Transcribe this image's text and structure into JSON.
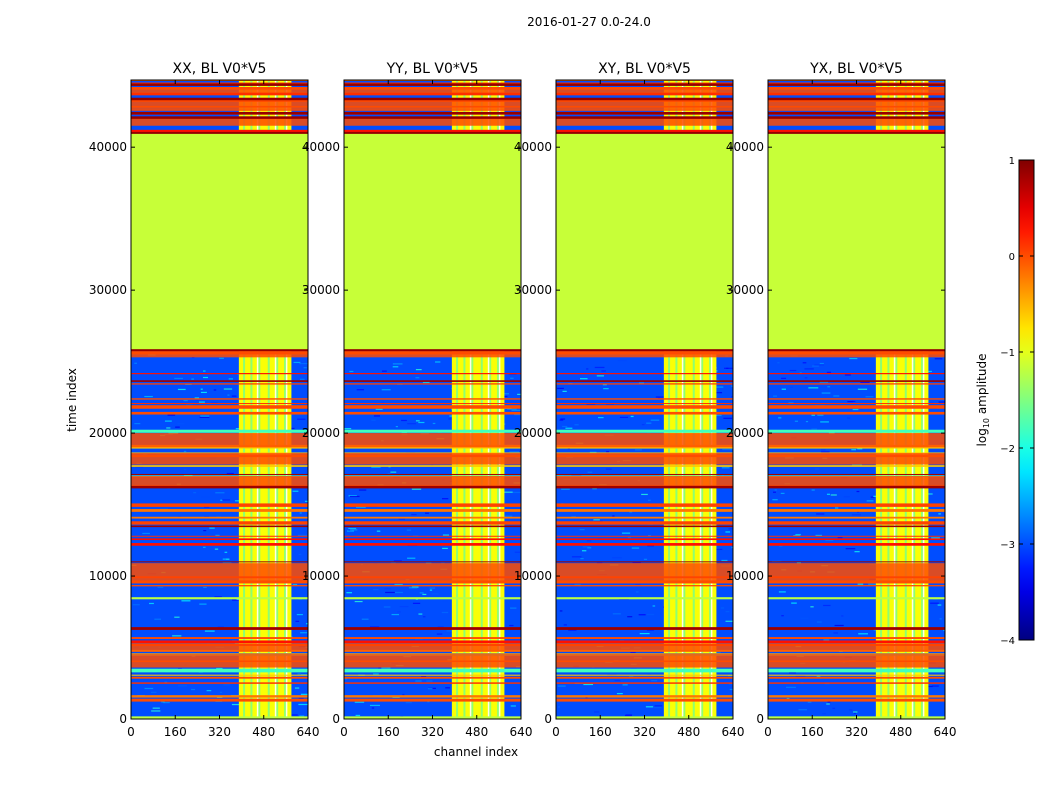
{
  "figure": {
    "suptitle": "2016-01-27 0.0-24.0"
  },
  "chart_data": {
    "type": "heatmap",
    "xlabel": "channel index",
    "ylabel": "time index",
    "xlim": [
      0,
      640
    ],
    "ylim": [
      0,
      44700
    ],
    "x_ticks": [
      0,
      160,
      320,
      480,
      640
    ],
    "x_tick_labels": [
      "0",
      "160",
      "320",
      "480",
      "640"
    ],
    "y_ticks": [
      0,
      10000,
      20000,
      30000,
      40000
    ],
    "y_tick_labels": [
      "0",
      "10000",
      "20000",
      "30000",
      "40000"
    ],
    "panels": [
      {
        "title": "XX, BL V0*V5"
      },
      {
        "title": "YY, BL V0*V5"
      },
      {
        "title": "XY, BL V0*V5"
      },
      {
        "title": "YX, BL V0*V5"
      }
    ],
    "colorbar": {
      "label_base": "log",
      "label_sub": "10",
      "label_rest": " amplitude",
      "range": [
        -4,
        1
      ],
      "ticks": [
        1,
        0,
        -1,
        -2,
        -3,
        -4
      ],
      "tick_labels": [
        "1",
        "0",
        "−1",
        "−2",
        "−3",
        "−4"
      ],
      "colormap": "jet"
    },
    "regions": {
      "flagged_constant_time_range": [
        25800,
        41000
      ],
      "flagged_constant_value": -1.15,
      "band_time_range": [
        0,
        25800
      ],
      "band_time_range_top": [
        41000,
        44700
      ],
      "high_channel_range": [
        390,
        580
      ],
      "high_value": -0.9,
      "background_value": -3.0,
      "stripe_value": 0.0
    }
  }
}
